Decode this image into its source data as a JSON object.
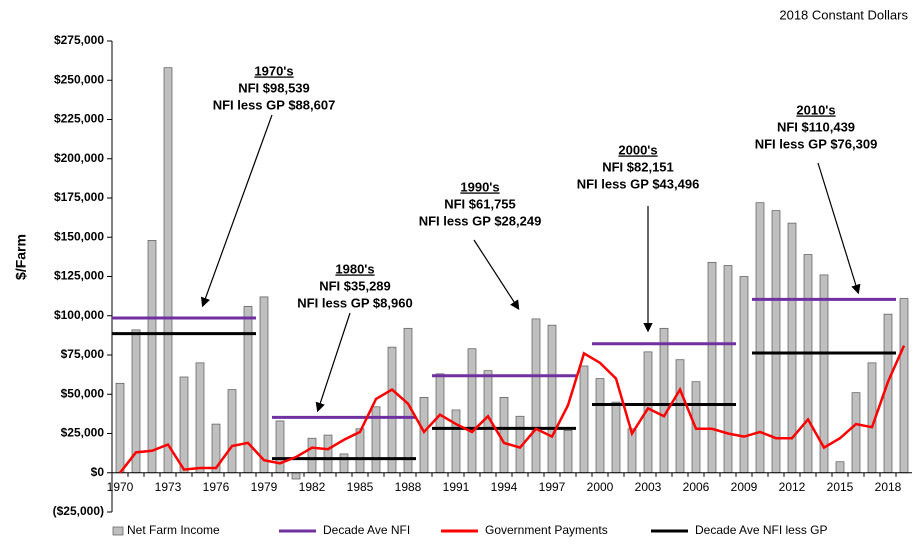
{
  "chart_data": {
    "type": "bar",
    "title": "2018 Constant Dollars",
    "ylabel": "$/Farm",
    "categories": [
      "1970",
      null,
      null,
      "1973",
      null,
      null,
      "1976",
      null,
      null,
      "1979",
      null,
      null,
      "1982",
      null,
      null,
      "1985",
      null,
      null,
      "1988",
      null,
      null,
      "1991",
      null,
      null,
      "1994",
      null,
      null,
      "1997",
      null,
      null,
      "2000",
      null,
      null,
      "2003",
      null,
      null,
      "2006",
      null,
      null,
      "2009",
      null,
      null,
      "2012",
      null,
      null,
      "2015",
      null,
      null,
      "2018",
      null
    ],
    "series": [
      {
        "name": "Net Farm Income",
        "color": "#bfbfbf",
        "values": [
          57000,
          91000,
          148000,
          258000,
          61000,
          70000,
          31000,
          53000,
          106000,
          112000,
          33000,
          -4000,
          22000,
          24000,
          12000,
          28000,
          42000,
          80000,
          92000,
          48000,
          63000,
          40000,
          79000,
          65000,
          48000,
          36000,
          98000,
          94000,
          27000,
          68000,
          60000,
          45000,
          28000,
          77000,
          92000,
          72000,
          58000,
          134000,
          132000,
          125000,
          172000,
          167000,
          159000,
          139000,
          126000,
          7000,
          51000,
          70000,
          101000,
          111000
        ]
      },
      {
        "name": "Government Payments",
        "color": "#ff0000",
        "values": [
          0,
          13000,
          14000,
          18000,
          2000,
          3000,
          3000,
          17000,
          19000,
          8000,
          6000,
          10000,
          16000,
          15000,
          21000,
          26000,
          47000,
          53000,
          44000,
          26000,
          37000,
          31000,
          26000,
          36000,
          19000,
          16000,
          28000,
          23000,
          43000,
          76000,
          70000,
          60000,
          25000,
          41000,
          36000,
          53000,
          28000,
          28000,
          25000,
          23000,
          26000,
          22000,
          22000,
          34000,
          16000,
          22000,
          31000,
          29000,
          58000,
          81000
        ]
      }
    ],
    "decade_series": [
      {
        "name": "Decade Ave NFI",
        "color": "#7030a0",
        "values": [
          98539,
          35289,
          61755,
          82151,
          110439
        ]
      },
      {
        "name": "Decade Ave NFI less GP",
        "color": "#000000",
        "values": [
          88607,
          8960,
          28249,
          43496,
          76309
        ]
      }
    ],
    "annotations": [
      [
        "1970's",
        "NFI $98,539",
        "NFI less GP $88,607"
      ],
      [
        "1980's",
        "NFI $35,289",
        "NFI less GP $8,960"
      ],
      [
        "1990's",
        "NFI $61,755",
        "NFI less GP $28,249"
      ],
      [
        "2000's",
        "NFI $82,151",
        "NFI less GP $43,496"
      ],
      [
        "2010's",
        "NFI $110,439",
        "NFI less GP $76,309"
      ]
    ],
    "ylim": [
      -25000,
      275000
    ],
    "yticks": [
      {
        "value": -25000,
        "label": "($25,000)"
      },
      {
        "value": 0,
        "label": "$0"
      },
      {
        "value": 25000,
        "label": "$25,000"
      },
      {
        "value": 50000,
        "label": "$50,000"
      },
      {
        "value": 75000,
        "label": "$75,000"
      },
      {
        "value": 100000,
        "label": "$100,000"
      },
      {
        "value": 125000,
        "label": "$125,000"
      },
      {
        "value": 150000,
        "label": "$150,000"
      },
      {
        "value": 175000,
        "label": "$175,000"
      },
      {
        "value": 200000,
        "label": "$200,000"
      },
      {
        "value": 225000,
        "label": "$225,000"
      },
      {
        "value": 250000,
        "label": "$250,000"
      },
      {
        "value": 275000,
        "label": "$275,000"
      }
    ],
    "legend": "bottom"
  }
}
